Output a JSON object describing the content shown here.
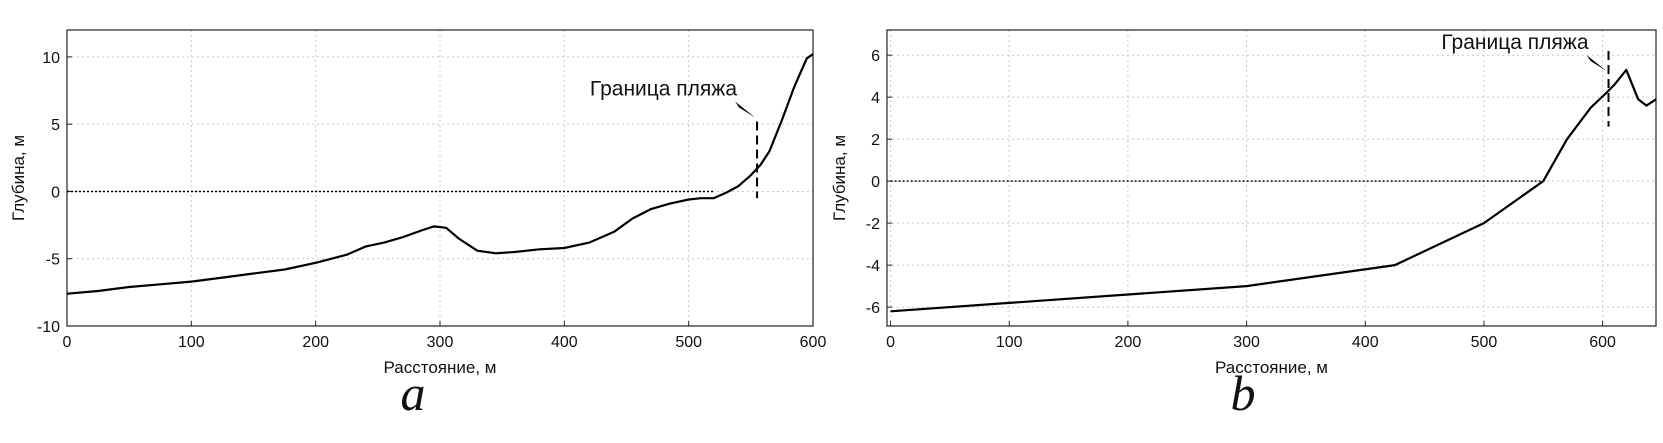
{
  "chart_data": [
    {
      "panel_label": "a",
      "type": "line",
      "xlabel": "Расстояние, м",
      "ylabel": "Глубина, м",
      "xlim": [
        0,
        600
      ],
      "ylim": [
        -10,
        12
      ],
      "xticks": [
        0,
        100,
        200,
        300,
        400,
        500,
        600
      ],
      "yticks": [
        -10,
        -5,
        0,
        5,
        10
      ],
      "grid": true,
      "series": [
        {
          "x": [
            0,
            25,
            50,
            75,
            100,
            125,
            150,
            175,
            200,
            225,
            240,
            255,
            270,
            285,
            295,
            305,
            315,
            330,
            345,
            360,
            380,
            400,
            420,
            440,
            455,
            470,
            485,
            500,
            510,
            520,
            530,
            540,
            550,
            558,
            565,
            575,
            585,
            595,
            600
          ],
          "y": [
            -7.6,
            -7.4,
            -7.1,
            -6.9,
            -6.7,
            -6.4,
            -6.1,
            -5.8,
            -5.3,
            -4.7,
            -4.1,
            -3.8,
            -3.4,
            -2.9,
            -2.6,
            -2.7,
            -3.5,
            -4.4,
            -4.6,
            -4.5,
            -4.3,
            -4.2,
            -3.8,
            -3.0,
            -2.0,
            -1.3,
            -0.9,
            -0.6,
            -0.5,
            -0.5,
            -0.1,
            0.4,
            1.2,
            2.0,
            3.0,
            5.3,
            7.8,
            9.9,
            10.2
          ]
        },
        {
          "style": "dotted",
          "x": [
            0,
            520
          ],
          "y": [
            0,
            0
          ]
        }
      ],
      "annotation": {
        "text": "Граница пляжа",
        "marker_x": 555,
        "marker_y": [
          -0.5,
          5.2
        ]
      }
    },
    {
      "panel_label": "b",
      "type": "line",
      "xlabel": "Расстояние, м",
      "ylabel": "Глубина, м",
      "xlim": [
        -3,
        645
      ],
      "ylim": [
        -6.9,
        7.2
      ],
      "xticks": [
        0,
        100,
        200,
        300,
        400,
        500,
        600
      ],
      "yticks": [
        -6,
        -4,
        -2,
        0,
        2,
        4,
        6
      ],
      "grid": true,
      "series": [
        {
          "x": [
            0,
            100,
            200,
            300,
            425,
            500,
            550,
            570,
            590,
            603,
            610,
            620,
            630,
            637,
            645
          ],
          "y": [
            -6.2,
            -5.8,
            -5.4,
            -5.0,
            -4.0,
            -2.0,
            0.0,
            2.0,
            3.5,
            4.2,
            4.6,
            5.3,
            3.9,
            3.6,
            3.9
          ]
        },
        {
          "style": "dotted",
          "x": [
            0,
            552
          ],
          "y": [
            0,
            0
          ]
        }
      ],
      "annotation": {
        "text": "Граница пляжа",
        "marker_x": 605,
        "marker_y": [
          2.6,
          6.2
        ]
      }
    }
  ]
}
